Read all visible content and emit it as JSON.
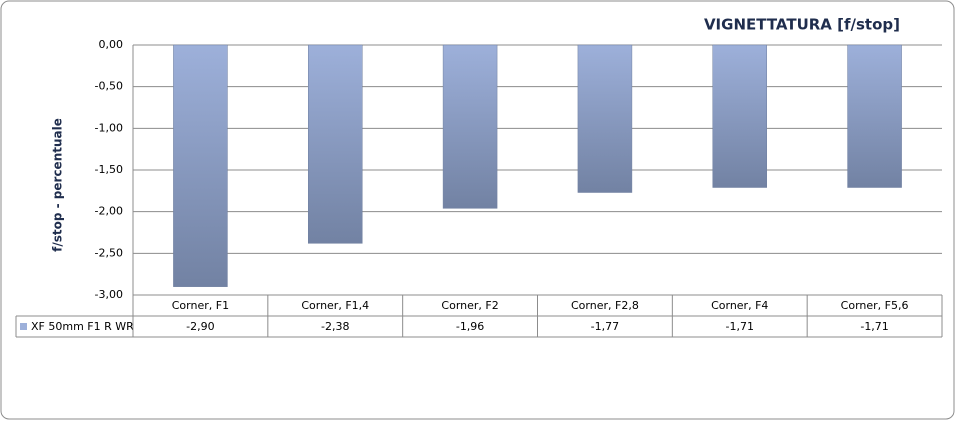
{
  "chart_data": {
    "type": "bar",
    "title": "VIGNETTATURA [f/stop]",
    "y_label": "f/stop - percentuale",
    "categories": [
      "Corner, F1",
      "Corner, F1,4",
      "Corner, F2",
      "Corner, F2,8",
      "Corner, F4",
      "Corner, F5,6"
    ],
    "series": [
      {
        "name": "XF 50mm F1 R WR",
        "color": "#9db0da",
        "values": [
          -2.9,
          -2.38,
          -1.96,
          -1.77,
          -1.71,
          -1.71
        ],
        "value_labels": [
          "-2,90",
          "-2,38",
          "-1,96",
          "-1,77",
          "-1,71",
          "-1,71"
        ]
      }
    ],
    "ylim": [
      -3,
      0
    ],
    "yticks": [
      {
        "value": 0,
        "label": "0,00"
      },
      {
        "value": -0.5,
        "label": "-0,50"
      },
      {
        "value": -1,
        "label": "-1,00"
      },
      {
        "value": -1.5,
        "label": "-1,50"
      },
      {
        "value": -2,
        "label": "-2,00"
      },
      {
        "value": -2.5,
        "label": "-2,50"
      },
      {
        "value": -3,
        "label": "-3,00"
      }
    ],
    "grid": true
  }
}
